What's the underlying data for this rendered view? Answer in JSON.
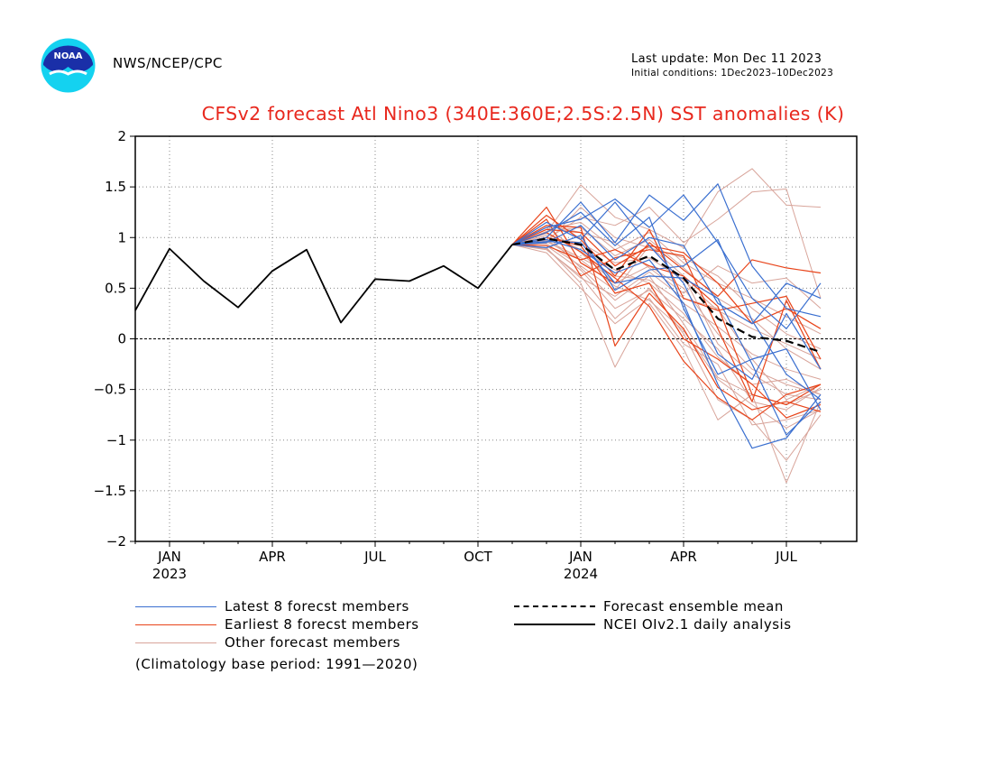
{
  "header": {
    "org": "NWS/NCEP/CPC",
    "last_update": "Last update: Mon Dec 11 2023",
    "initial_conditions": "Initial conditions: 1Dec2023–10Dec2023",
    "logo_text": "NOAA"
  },
  "legend": {
    "latest": "Latest 8 forecst members",
    "earliest": "Earliest 8 forecst members",
    "other": "Other forecast members",
    "mean": "Forecast ensemble mean",
    "analysis": "NCEI OIv2.1 daily analysis"
  },
  "footnote": "(Climatology base period: 1991—2020)",
  "chart_data": {
    "type": "line",
    "title": "CFSv2 forecast Atl Nino3 (340E:360E;2.5S:2.5N) SST anomalies (K)",
    "ylim": [
      -2,
      2
    ],
    "yticks": [
      2,
      1.5,
      1,
      0.5,
      0,
      -0.5,
      -1,
      -1.5,
      -2
    ],
    "ytick_labels": [
      "2",
      "1.5",
      "1",
      "0.5",
      "0",
      "−0.5",
      "−1",
      "−1.5",
      "−2"
    ],
    "xlim": [
      "2022-12",
      "2024-07"
    ],
    "xticks": [
      {
        "month": "2023-01",
        "label": "JAN",
        "year": "2023"
      },
      {
        "month": "2023-04",
        "label": "APR"
      },
      {
        "month": "2023-07",
        "label": "JUL"
      },
      {
        "month": "2023-10",
        "label": "OCT"
      },
      {
        "month": "2024-01",
        "label": "JAN",
        "year": "2024"
      },
      {
        "month": "2024-04",
        "label": "APR"
      },
      {
        "month": "2024-07",
        "label": "JUL"
      }
    ],
    "grid": true,
    "zero_line": true,
    "colors": {
      "latest": "#3a6fd0",
      "earliest": "#e8441a",
      "other": "#d8a49a",
      "mean": "#000000",
      "analysis": "#000000",
      "title": "#e8281e",
      "logo_blue": "#1a2fa8",
      "logo_cyan": "#14d2f0"
    },
    "analysis": {
      "name": "NCEI OIv2.1 daily analysis",
      "months": [
        "2022-12",
        "2023-01",
        "2023-02",
        "2023-03",
        "2023-04",
        "2023-05",
        "2023-06",
        "2023-07",
        "2023-08",
        "2023-09",
        "2023-10",
        "2023-11"
      ],
      "values": [
        0.28,
        0.89,
        0.57,
        0.31,
        0.67,
        0.88,
        0.16,
        0.59,
        0.57,
        0.72,
        0.5,
        0.93
      ]
    },
    "forecast_months": [
      "2023-11",
      "2023-12",
      "2024-01",
      "2024-02",
      "2024-03",
      "2024-04",
      "2024-05",
      "2024-06",
      "2024-07",
      "2024-08"
    ],
    "mean": {
      "name": "Forecast ensemble mean",
      "values": [
        0.93,
        0.99,
        0.93,
        0.68,
        0.82,
        0.6,
        0.2,
        0.02,
        -0.02,
        -0.13
      ]
    },
    "latest": [
      [
        0.93,
        1.0,
        1.35,
        0.95,
        1.42,
        1.17,
        1.53,
        0.72,
        0.3,
        0.22
      ],
      [
        0.93,
        1.1,
        1.18,
        1.38,
        1.1,
        1.42,
        0.95,
        0.4,
        0.1,
        0.55
      ],
      [
        0.93,
        0.95,
        1.12,
        0.78,
        1.0,
        0.92,
        0.35,
        0.15,
        0.55,
        0.4
      ],
      [
        0.93,
        1.15,
        0.98,
        1.35,
        0.92,
        0.55,
        -0.15,
        -0.4,
        0.25,
        -0.3
      ],
      [
        0.93,
        0.98,
        0.88,
        0.65,
        0.78,
        0.35,
        -0.45,
        -1.08,
        -0.98,
        -0.55
      ],
      [
        0.93,
        1.05,
        1.25,
        0.92,
        1.2,
        0.3,
        -0.35,
        -0.2,
        -0.1,
        -0.7
      ],
      [
        0.93,
        0.9,
        1.02,
        0.48,
        0.68,
        0.72,
        0.98,
        0.18,
        -0.35,
        -0.6
      ],
      [
        0.93,
        0.96,
        0.95,
        0.55,
        0.62,
        0.6,
        0.4,
        -0.25,
        -0.95,
        -0.62
      ]
    ],
    "earliest": [
      [
        0.93,
        1.3,
        0.75,
        0.55,
        0.95,
        0.68,
        0.42,
        0.78,
        0.7,
        0.65
      ],
      [
        0.93,
        1.22,
        0.98,
        0.62,
        1.08,
        0.4,
        0.28,
        0.35,
        0.42,
        -0.2
      ],
      [
        0.93,
        1.12,
        1.1,
        -0.07,
        0.45,
        0.1,
        -0.48,
        -0.7,
        -0.62,
        -0.72
      ],
      [
        0.93,
        1.05,
        0.86,
        0.6,
        0.32,
        -0.22,
        -0.58,
        -0.8,
        -0.55,
        -0.45
      ],
      [
        0.93,
        1.18,
        0.62,
        0.8,
        0.88,
        0.82,
        0.1,
        -0.62,
        0.38,
        -0.3
      ],
      [
        0.93,
        1.0,
        0.92,
        0.45,
        0.55,
        0.0,
        -0.2,
        -0.45,
        -0.78,
        -0.65
      ],
      [
        0.93,
        1.08,
        1.05,
        0.72,
        0.92,
        0.85,
        0.55,
        0.15,
        0.3,
        0.1
      ],
      [
        0.93,
        0.92,
        0.78,
        0.88,
        0.72,
        0.62,
        0.32,
        -0.55,
        -0.65,
        -0.45
      ]
    ],
    "other": [
      [
        0.93,
        1.05,
        1.52,
        1.2,
        1.08,
        0.9,
        1.45,
        1.68,
        1.32,
        1.3
      ],
      [
        0.93,
        0.98,
        1.2,
        1.12,
        1.3,
        0.95,
        1.18,
        1.45,
        1.48,
        0.4
      ],
      [
        0.93,
        0.9,
        0.55,
        -0.28,
        0.35,
        -0.1,
        -0.8,
        -0.55,
        -1.42,
        -0.62
      ],
      [
        0.93,
        0.88,
        0.62,
        0.2,
        0.5,
        0.05,
        -0.6,
        -0.8,
        -1.2,
        -0.75
      ],
      [
        0.93,
        1.02,
        0.7,
        0.38,
        0.62,
        0.15,
        -0.38,
        -0.55,
        -0.65,
        -0.5
      ],
      [
        0.93,
        0.95,
        1.3,
        1.0,
        0.9,
        0.8,
        0.62,
        0.3,
        0.05,
        -0.1
      ],
      [
        0.93,
        1.1,
        0.85,
        0.55,
        0.72,
        0.5,
        0.05,
        -0.3,
        -0.45,
        -0.55
      ],
      [
        0.93,
        0.92,
        0.68,
        0.3,
        0.48,
        0.2,
        -0.1,
        -0.62,
        -0.7,
        -0.48
      ],
      [
        0.93,
        1.0,
        0.95,
        0.75,
        0.8,
        0.58,
        0.28,
        0.1,
        -0.05,
        -0.2
      ],
      [
        0.93,
        1.08,
        1.15,
        0.88,
        1.05,
        0.75,
        0.55,
        0.4,
        0.22,
        0.05
      ],
      [
        0.93,
        0.85,
        0.5,
        0.15,
        0.4,
        -0.05,
        -0.25,
        -0.85,
        -0.8,
        -0.7
      ],
      [
        0.93,
        0.97,
        0.8,
        0.62,
        0.58,
        0.35,
        0.12,
        -0.15,
        -0.3,
        -0.4
      ],
      [
        0.93,
        1.12,
        1.05,
        0.95,
        0.7,
        0.45,
        0.72,
        0.55,
        0.6,
        0.3
      ],
      [
        0.93,
        0.94,
        0.72,
        0.48,
        0.92,
        0.62,
        -0.05,
        -0.35,
        -0.55,
        -0.6
      ],
      [
        0.93,
        1.04,
        0.88,
        0.68,
        0.55,
        0.25,
        -0.18,
        -0.45,
        -0.4,
        -0.55
      ],
      [
        0.93,
        0.89,
        0.6,
        0.42,
        0.66,
        0.4,
        0.3,
        -0.2,
        -0.6,
        -0.45
      ],
      [
        0.93,
        1.06,
        1.1,
        0.82,
        0.98,
        0.7,
        0.4,
        0.2,
        -0.1,
        -0.3
      ],
      [
        0.93,
        0.96,
        0.78,
        0.52,
        0.38,
        0.08,
        -0.4,
        -0.65,
        -0.88,
        -0.7
      ]
    ]
  }
}
